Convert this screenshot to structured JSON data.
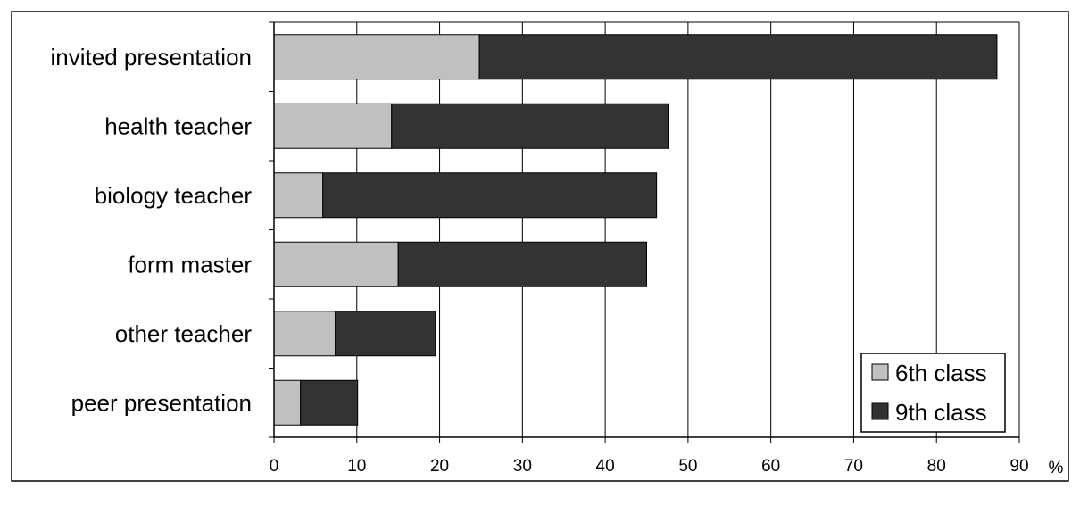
{
  "chart_data": {
    "type": "bar",
    "orientation": "horizontal",
    "stacked": true,
    "categories": [
      "invited presentation",
      "health teacher",
      "biology teacher",
      "form master",
      "other teacher",
      "peer presentation"
    ],
    "series": [
      {
        "name": "6th class",
        "color": "#c0c0c0",
        "values": [
          24.8,
          14.2,
          5.9,
          15.0,
          7.4,
          3.2
        ]
      },
      {
        "name": "9th class",
        "color": "#333333",
        "values": [
          62.5,
          33.4,
          40.3,
          30.0,
          12.1,
          6.9
        ]
      }
    ],
    "x_ticks": [
      "0",
      "10",
      "20",
      "30",
      "40",
      "50",
      "60",
      "70",
      "80",
      "90"
    ],
    "xlim": [
      0,
      90
    ],
    "unit_label": "%",
    "grid": "vertical",
    "legend_position": "bottom-right"
  }
}
